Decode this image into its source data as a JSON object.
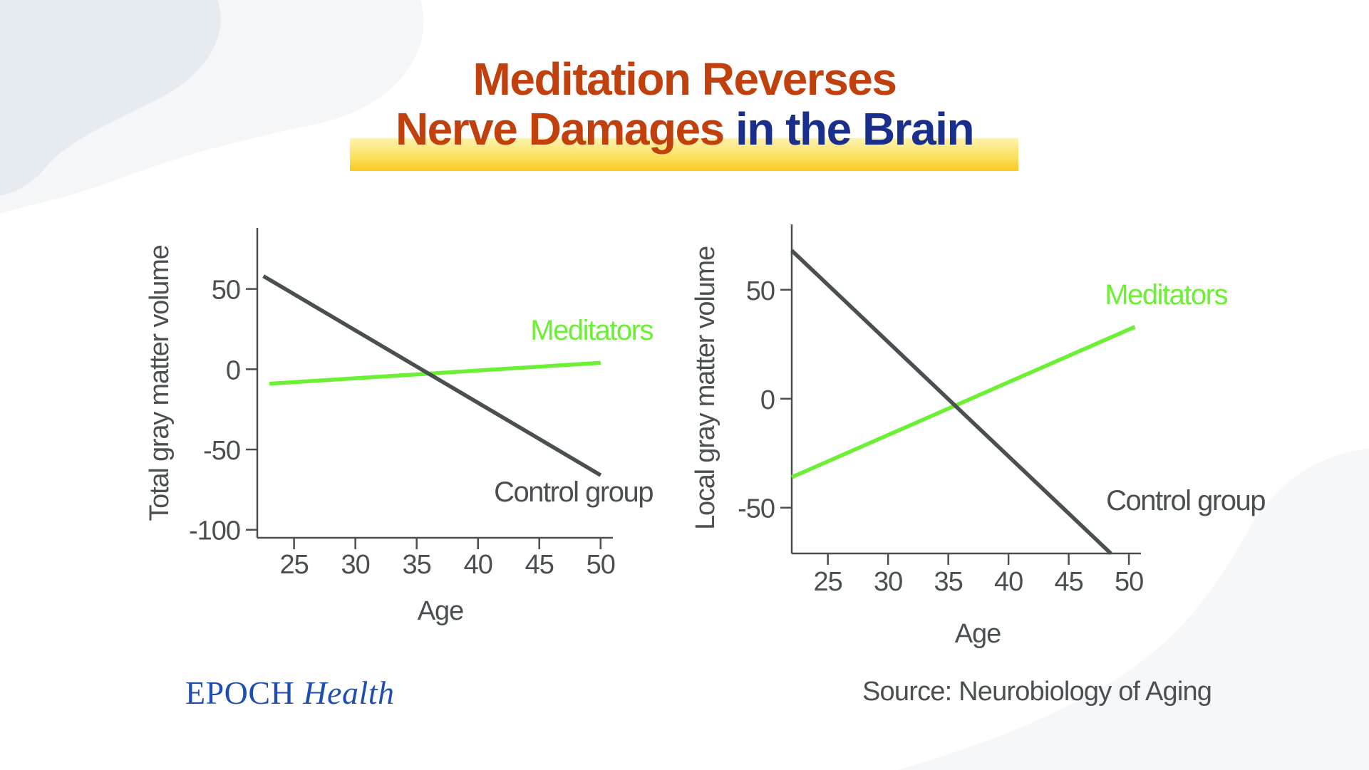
{
  "title": {
    "line1": "Meditation Reverses",
    "line2_part1": "Nerve Damages",
    "line2_part2": " in the Brain"
  },
  "colors": {
    "title_orange": "#c0410e",
    "title_blue": "#1a2e8c",
    "control": "#4a4f52",
    "meditators": "#6cf034",
    "axis": "#4a4f52"
  },
  "chart_data": [
    {
      "type": "line",
      "xlabel": "Age",
      "ylabel": "Total gray matter volume",
      "xlim": [
        22,
        51
      ],
      "ylim": [
        -105,
        88
      ],
      "xticks": [
        25,
        30,
        35,
        40,
        45,
        50
      ],
      "yticks": [
        50,
        0,
        -50,
        -100
      ],
      "grid": false,
      "series": [
        {
          "name": "Control group",
          "x": [
            22.5,
            50
          ],
          "y": [
            58,
            -66
          ]
        },
        {
          "name": "Meditators",
          "x": [
            23,
            50
          ],
          "y": [
            -9,
            4
          ]
        }
      ]
    },
    {
      "type": "line",
      "xlabel": "Age",
      "ylabel": "Local gray matter volume",
      "xlim": [
        22,
        51
      ],
      "ylim": [
        -71,
        80
      ],
      "xticks": [
        25,
        30,
        35,
        40,
        45,
        50
      ],
      "yticks": [
        50,
        0,
        -50
      ],
      "grid": false,
      "series": [
        {
          "name": "Control group",
          "x": [
            22,
            48.5
          ],
          "y": [
            68,
            -71
          ]
        },
        {
          "name": "Meditators",
          "x": [
            22,
            50.5
          ],
          "y": [
            -36,
            33
          ]
        }
      ]
    }
  ],
  "logo": {
    "part1": "EPOCH",
    "part2": " Health"
  },
  "source": "Source: Neurobiology of Aging"
}
